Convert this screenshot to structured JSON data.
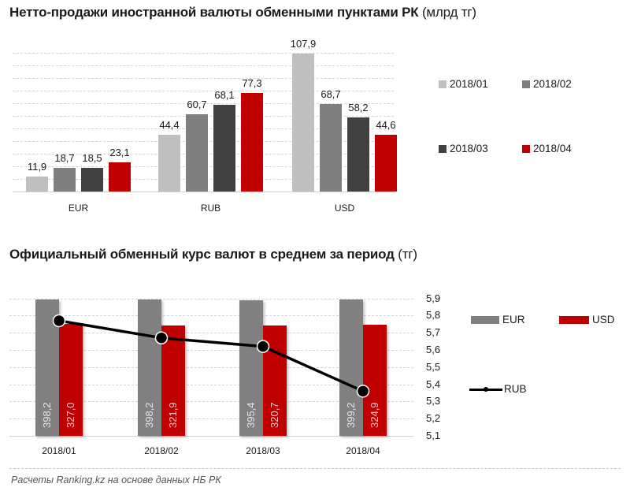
{
  "chart1": {
    "title": "Нетто-продажи иностранной валюты обменными пунктами РК",
    "unit": "(млрд тг)"
  },
  "chart2": {
    "title": "Официальный обменный курс валют в среднем за период",
    "unit": "(тг)"
  },
  "footer": "Расчеты Ranking.kz на основе данных НБ РК",
  "colors": {
    "p2018_01": "#bfbfbf",
    "p2018_02": "#7f7f7f",
    "p2018_03": "#404040",
    "p2018_04": "#c00000",
    "EUR": "#808080",
    "USD": "#c00000",
    "RUB": "#000000"
  },
  "chart_data": [
    {
      "type": "bar",
      "title": "Нетто-продажи иностранной валюты обменными пунктами РК (млрд тг)",
      "xlabel": "",
      "ylabel": "млрд тг",
      "categories": [
        "EUR",
        "RUB",
        "USD"
      ],
      "series": [
        {
          "name": "2018/01",
          "values": [
            11.9,
            44.4,
            107.9
          ],
          "labels": [
            "11,9",
            "44,4",
            "107,9"
          ]
        },
        {
          "name": "2018/02",
          "values": [
            18.7,
            60.7,
            68.7
          ],
          "labels": [
            "18,7",
            "60,7",
            "68,7"
          ]
        },
        {
          "name": "2018/03",
          "values": [
            18.5,
            68.1,
            58.2
          ],
          "labels": [
            "18,5",
            "68,1",
            "58,2"
          ]
        },
        {
          "name": "2018/04",
          "values": [
            23.1,
            77.3,
            44.6
          ],
          "labels": [
            "23,1",
            "77,3",
            "44,6"
          ]
        }
      ],
      "ylim": [
        0,
        120
      ],
      "grid": true,
      "legend_position": "right"
    },
    {
      "type": "bar+line",
      "title": "Официальный обменный курс валют в среднем за период (тг)",
      "categories": [
        "2018/01",
        "2018/02",
        "2018/03",
        "2018/04"
      ],
      "series": [
        {
          "name": "EUR",
          "type": "bar",
          "axis": "left",
          "values": [
            398.2,
            398.2,
            395.4,
            399.2
          ],
          "labels": [
            "398,2",
            "398,2",
            "395,4",
            "399,2"
          ]
        },
        {
          "name": "USD",
          "type": "bar",
          "axis": "left",
          "values": [
            327.0,
            321.9,
            320.7,
            324.9
          ],
          "labels": [
            "327,0",
            "321,9",
            "320,7",
            "324,9"
          ]
        },
        {
          "name": "RUB",
          "type": "line",
          "axis": "right",
          "values": [
            5.77,
            5.67,
            5.62,
            5.36
          ]
        }
      ],
      "right_axis": {
        "ticks": [
          "5,1",
          "5,2",
          "5,3",
          "5,4",
          "5,5",
          "5,6",
          "5,7",
          "5,8",
          "5,9"
        ],
        "range": [
          5.1,
          5.9
        ]
      },
      "grid": true,
      "legend_position": "right"
    }
  ]
}
